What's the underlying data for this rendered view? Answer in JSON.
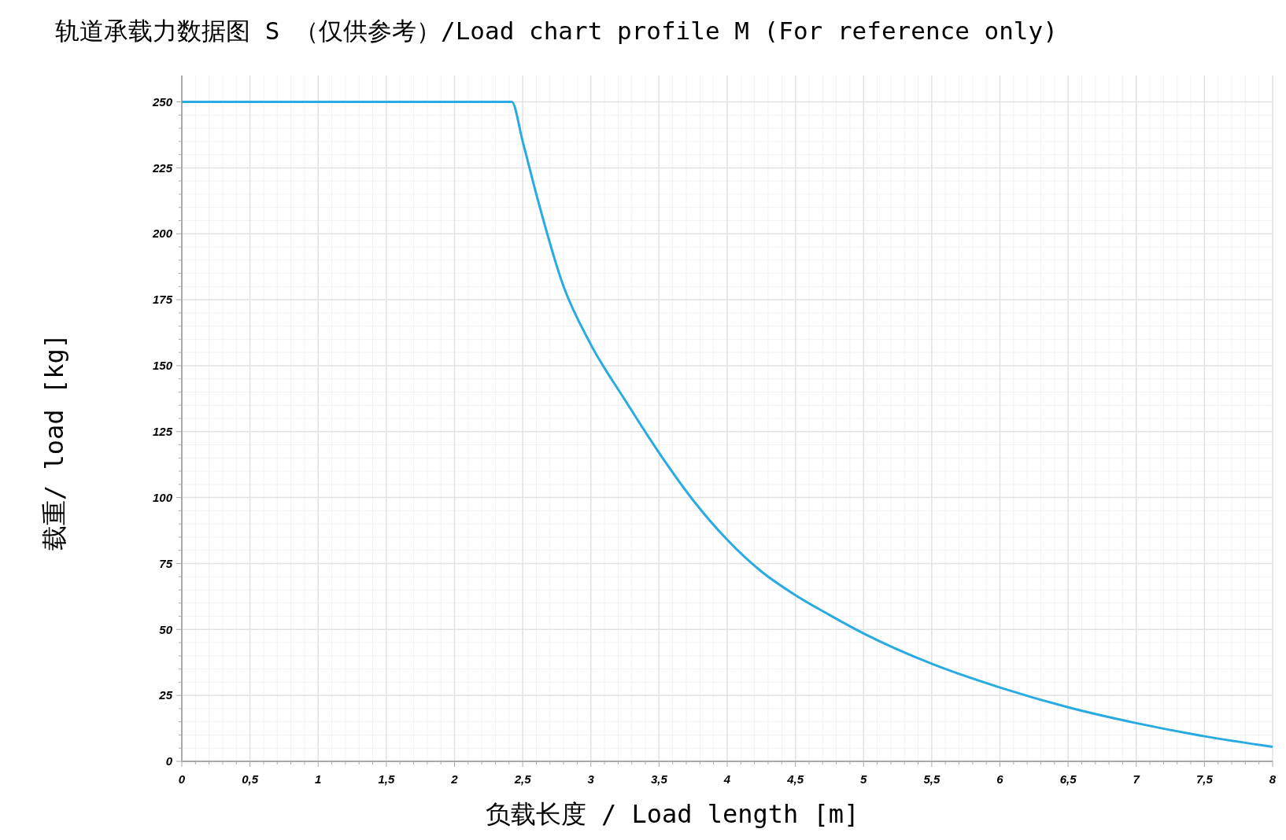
{
  "chart_data": {
    "type": "line",
    "title": "轨道承载力数据图 S （仅供参考）/Load chart profile M (For reference only)",
    "xlabel": "负载长度 / Load length [m]",
    "ylabel": "载重/ load [kg]",
    "x": [
      0,
      2.42,
      2.5,
      2.6,
      2.8,
      3,
      3.25,
      3.5,
      3.75,
      4,
      4.25,
      4.5,
      4.75,
      5,
      5.5,
      6,
      6.5,
      7,
      7.5,
      8
    ],
    "series": [
      {
        "color": "#29abe2",
        "values": [
          250,
          250,
          235,
          215,
          180,
          158,
          137,
          117,
          99,
          84,
          72,
          63,
          55.5,
          48.5,
          37,
          28,
          20.5,
          14.5,
          9.5,
          5.5
        ]
      }
    ],
    "xlim": [
      0,
      8
    ],
    "ylim": [
      0,
      260
    ],
    "xticks": [
      0,
      {
        "value": 0.5,
        "label": "0,5"
      },
      1,
      {
        "value": 1.5,
        "label": "1,5"
      },
      2,
      {
        "value": 2.5,
        "label": "2,5"
      },
      3,
      {
        "value": 3.5,
        "label": "3,5"
      },
      4,
      {
        "value": 4.5,
        "label": "4,5"
      },
      5,
      {
        "value": 5.5,
        "label": "5,5"
      },
      6,
      {
        "value": 6.5,
        "label": "6,5"
      },
      7,
      {
        "value": 7.5,
        "label": "7,5"
      },
      8
    ],
    "yticks": [
      0,
      25,
      50,
      75,
      100,
      125,
      150,
      175,
      200,
      225,
      250
    ],
    "grid": true,
    "marker": "none",
    "line_style": "solid"
  }
}
